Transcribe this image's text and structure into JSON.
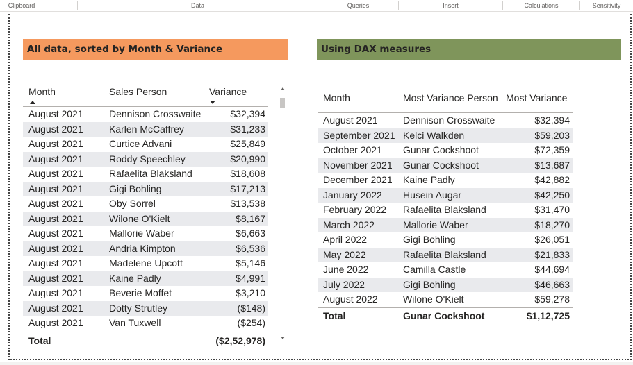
{
  "ribbon": {
    "groups": [
      "Clipboard",
      "Data",
      "Queries",
      "Insert",
      "Calculations",
      "Sensitivity"
    ]
  },
  "left_visual": {
    "title": "All data, sorted by Month & Variance",
    "title_color": "#f5995e",
    "columns": [
      "Month",
      "Sales Person",
      "Variance"
    ],
    "rows": [
      [
        "August 2021",
        "Dennison Crosswaite",
        "$32,394"
      ],
      [
        "August 2021",
        "Karlen McCaffrey",
        "$31,233"
      ],
      [
        "August 2021",
        "Curtice Advani",
        "$25,849"
      ],
      [
        "August 2021",
        "Roddy Speechley",
        "$20,990"
      ],
      [
        "August 2021",
        "Rafaelita Blaksland",
        "$18,608"
      ],
      [
        "August 2021",
        "Gigi Bohling",
        "$17,213"
      ],
      [
        "August 2021",
        "Oby Sorrel",
        "$13,538"
      ],
      [
        "August 2021",
        "Wilone O'Kielt",
        "$8,167"
      ],
      [
        "August 2021",
        "Mallorie Waber",
        "$6,663"
      ],
      [
        "August 2021",
        "Andria Kimpton",
        "$6,536"
      ],
      [
        "August 2021",
        "Madelene Upcott",
        "$5,146"
      ],
      [
        "August 2021",
        "Kaine Padly",
        "$4,991"
      ],
      [
        "August 2021",
        "Beverie Moffet",
        "$3,210"
      ],
      [
        "August 2021",
        "Dotty Strutley",
        "($148)"
      ],
      [
        "August 2021",
        "Van Tuxwell",
        "($254)"
      ]
    ],
    "total_label": "Total",
    "total_value": "($2,52,978)"
  },
  "right_visual": {
    "title": "Using DAX measures",
    "title_color": "#7f955b",
    "columns": [
      "Month",
      "Most Variance Person",
      "Most Variance"
    ],
    "rows": [
      [
        "August 2021",
        "Dennison Crosswaite",
        "$32,394"
      ],
      [
        "September 2021",
        "Kelci Walkden",
        "$59,203"
      ],
      [
        "October 2021",
        "Gunar Cockshoot",
        "$72,359"
      ],
      [
        "November 2021",
        "Gunar Cockshoot",
        "$13,687"
      ],
      [
        "December 2021",
        "Kaine Padly",
        "$42,882"
      ],
      [
        "January 2022",
        "Husein Augar",
        "$42,250"
      ],
      [
        "February 2022",
        "Rafaelita Blaksland",
        "$31,470"
      ],
      [
        "March 2022",
        "Mallorie Waber",
        "$18,270"
      ],
      [
        "April 2022",
        "Gigi Bohling",
        "$26,051"
      ],
      [
        "May 2022",
        "Rafaelita Blaksland",
        "$21,833"
      ],
      [
        "June 2022",
        "Camilla Castle",
        "$44,694"
      ],
      [
        "July 2022",
        "Gigi Bohling",
        "$46,663"
      ],
      [
        "August 2022",
        "Wilone O'Kielt",
        "$59,278"
      ]
    ],
    "total_label": "Total",
    "total_person": "Gunar Cockshoot",
    "total_value": "$1,12,725"
  }
}
